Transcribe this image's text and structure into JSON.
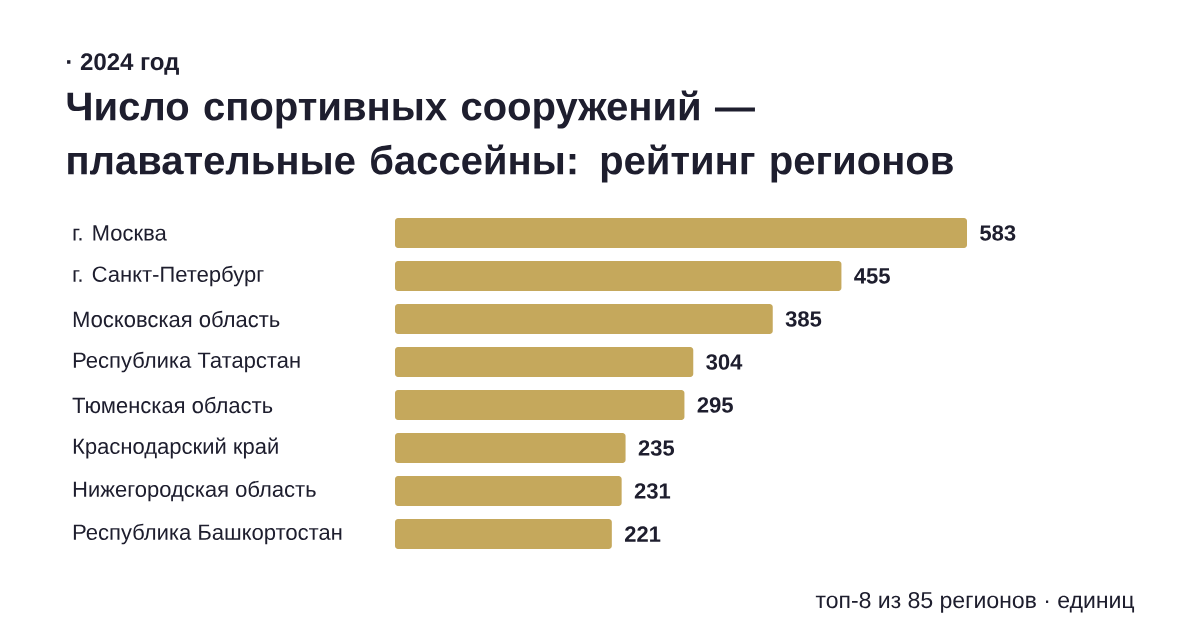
{
  "chart_data": {
    "type": "bar",
    "orientation": "horizontal",
    "title": "Число спортивных сооружений — плавательные бассейны: рейтинг регионов",
    "subtitle": "· 2024 год",
    "categories": [
      "г. Москва",
      "г. Санкт-Петербург",
      "Московская область",
      "Республика Татарстан",
      "Тюменская область",
      "Краснодарский край",
      "Нижегородская область",
      "Республика Башкортостан"
    ],
    "values": [
      583,
      455,
      385,
      304,
      295,
      235,
      231,
      221
    ],
    "color": "#c5a85c",
    "data_labels": true,
    "annotations": [
      "топ-8 из 85 регионов · единиц"
    ]
  }
}
